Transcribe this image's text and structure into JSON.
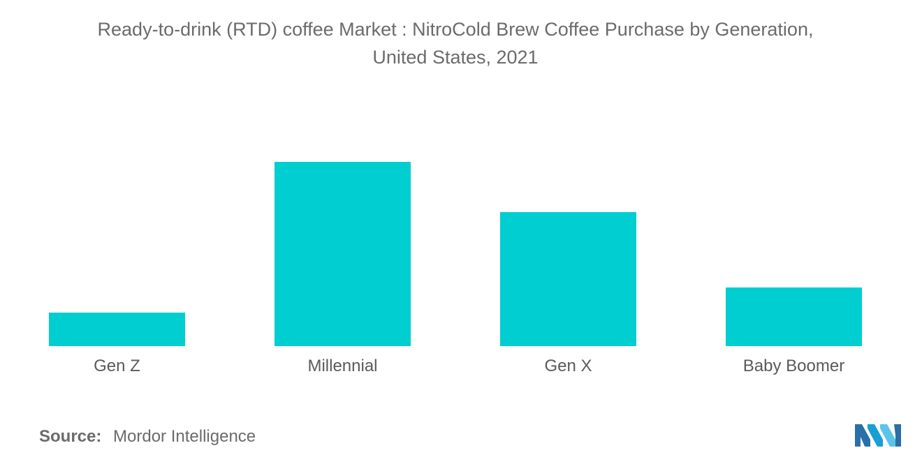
{
  "chart_data": {
    "type": "bar",
    "title": "Ready-to-drink (RTD) coffee Market : NitroCold Brew Coffee Purchase by Generation,",
    "subtitle": "United States, 2021",
    "categories": [
      "Gen Z",
      "Millennial",
      "Gen X",
      "Baby Boomer"
    ],
    "values": [
      8,
      44,
      32,
      14
    ],
    "ylim": [
      0,
      50
    ],
    "xlabel": "",
    "ylabel": "",
    "grid": false,
    "bar_color": "#00ced1"
  },
  "footer": {
    "source_label": "Source:",
    "source_text": "Mordor Intelligence"
  },
  "logo": {
    "icon": "mordor-intelligence-logo",
    "colors": [
      "#1a9fd4",
      "#5bc4e8",
      "#2a6fa8"
    ]
  }
}
